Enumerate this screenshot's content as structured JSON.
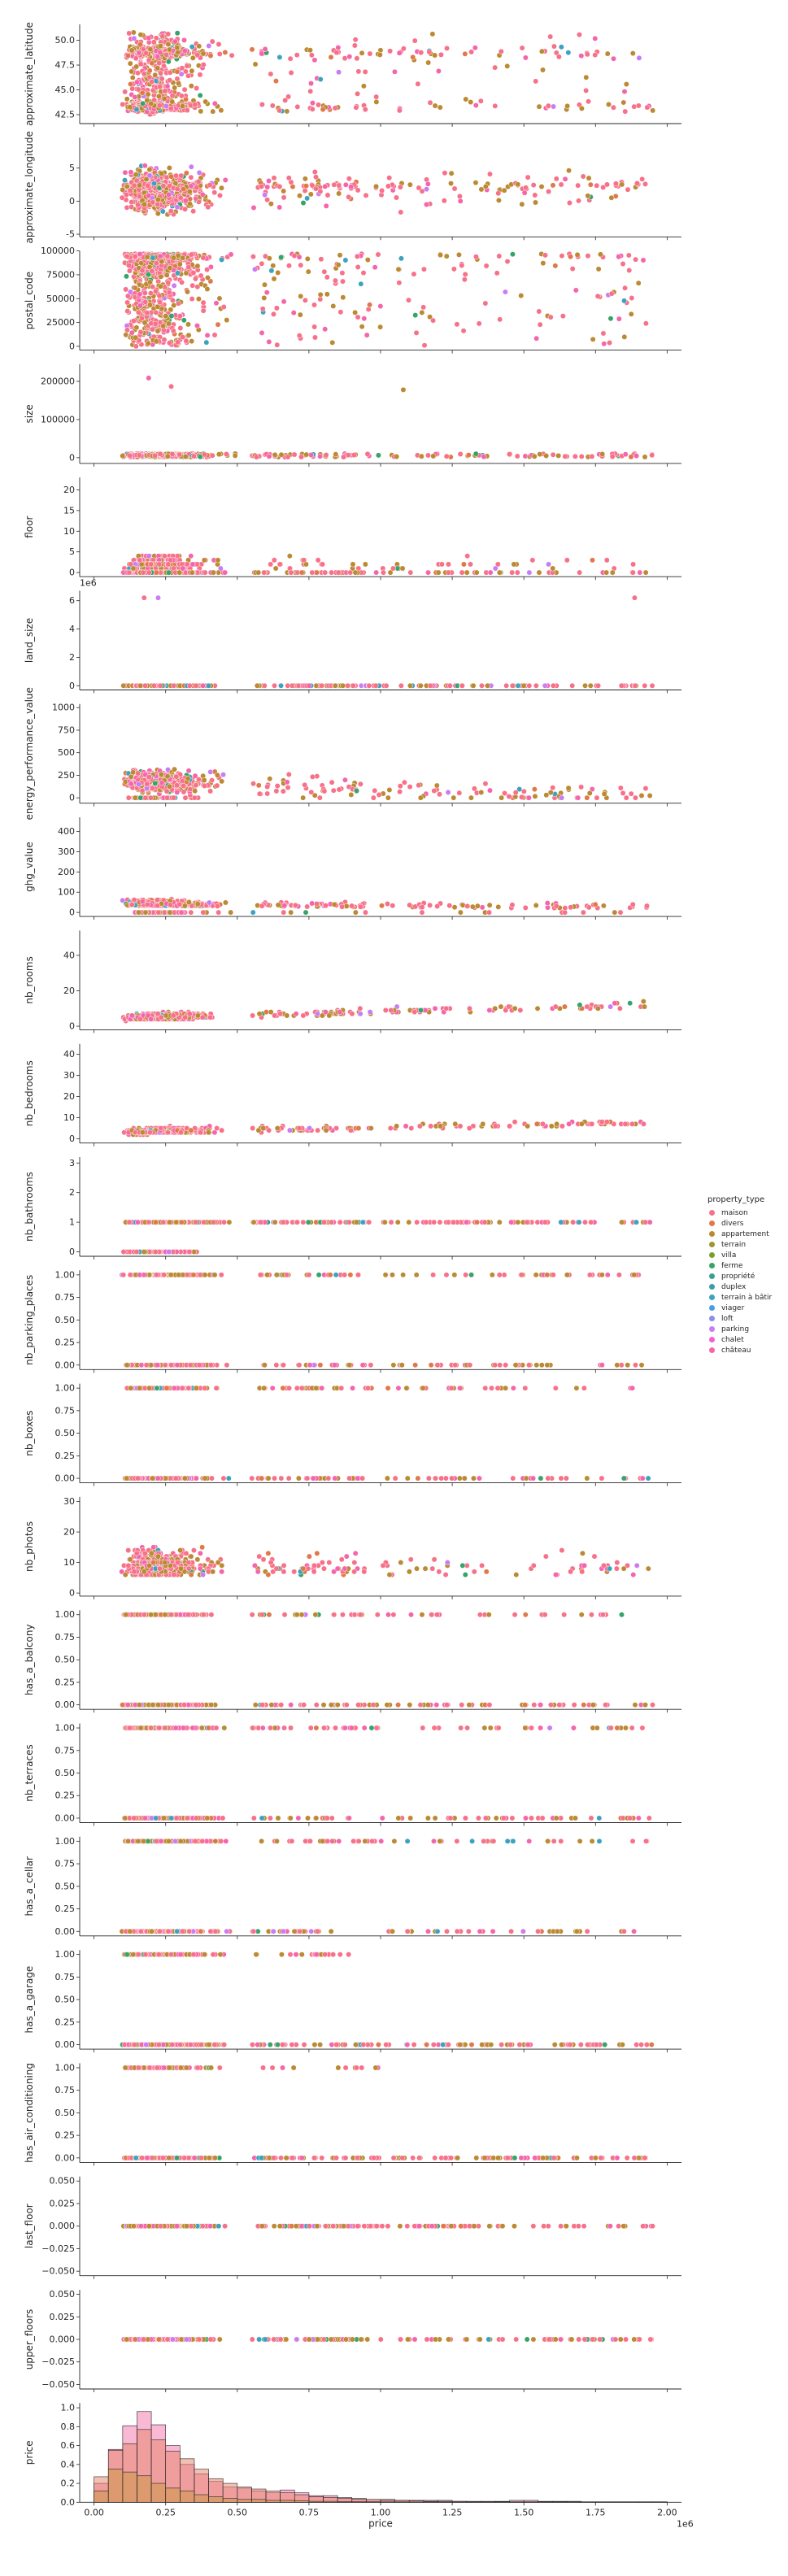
{
  "chart_data": {
    "type": "scatter",
    "xlabel": "price",
    "x_offset_text": "1e6",
    "xlim": [
      -0.05,
      2.05
    ],
    "xticks": [
      "0.00",
      "0.25",
      "0.50",
      "0.75",
      "1.00",
      "1.25",
      "1.50",
      "1.75",
      "2.00"
    ],
    "xtick_values": [
      0,
      0.25,
      0.5,
      0.75,
      1.0,
      1.25,
      1.5,
      1.75,
      2.0
    ],
    "legend": {
      "title": "property_type",
      "placement": "right",
      "entries": [
        "maison",
        "divers",
        "appartement",
        "terrain",
        "villa",
        "ferme",
        "propriété",
        "duplex",
        "terrain à bâtir",
        "viager",
        "loft",
        "parking",
        "chalet",
        "château"
      ],
      "colors": [
        "#f77189",
        "#e0794a",
        "#bb8a32",
        "#9e9632",
        "#7f9c31",
        "#35a46a",
        "#37a18d",
        "#38a0a5",
        "#3ba3c0",
        "#4a9be8",
        "#8b8ef0",
        "#c87df4",
        "#f45fd4",
        "#f565ac"
      ]
    },
    "panels": [
      {
        "ylabel": "approximate_latitude",
        "ylim": [
          41.6,
          51.6
        ],
        "yticks": [
          "42.5",
          "45.0",
          "47.5",
          "50.0"
        ],
        "ytick_values": [
          42.5,
          45.0,
          47.5,
          50.0
        ],
        "type": "scatter"
      },
      {
        "ylabel": "approximate_longitude",
        "ylim": [
          -5.4,
          9.6
        ],
        "yticks": [
          "-5",
          "0",
          "5"
        ],
        "ytick_values": [
          -5,
          0,
          5
        ],
        "type": "scatter"
      },
      {
        "ylabel": "postal_code",
        "ylim": [
          -4000,
          100000
        ],
        "yticks": [
          "0",
          "25000",
          "50000",
          "75000",
          "100000"
        ],
        "ytick_values": [
          0,
          25000,
          50000,
          75000,
          100000
        ],
        "type": "scatter"
      },
      {
        "ylabel": "size",
        "ylim": [
          -15000,
          245000
        ],
        "yticks": [
          "0",
          "100000",
          "200000"
        ],
        "ytick_values": [
          0,
          100000,
          200000
        ],
        "type": "scatter"
      },
      {
        "ylabel": "floor",
        "ylim": [
          -1,
          23
        ],
        "yticks": [
          "0",
          "5",
          "10",
          "15",
          "20"
        ],
        "ytick_values": [
          0,
          5,
          10,
          15,
          20
        ],
        "type": "scatter"
      },
      {
        "ylabel": "land_size",
        "offset_text": "1e6",
        "ylim": [
          -0.3,
          6.7
        ],
        "yticks": [
          "0",
          "2",
          "4",
          "6"
        ],
        "ytick_values": [
          0,
          2,
          4,
          6
        ],
        "type": "scatter"
      },
      {
        "ylabel": "energy_performance_value",
        "ylim": [
          -60,
          1040
        ],
        "yticks": [
          "0",
          "250",
          "500",
          "750",
          "1000"
        ],
        "ytick_values": [
          0,
          250,
          500,
          750,
          1000
        ],
        "type": "scatter"
      },
      {
        "ylabel": "ghg_value",
        "ylim": [
          -20,
          470
        ],
        "yticks": [
          "0",
          "100",
          "200",
          "300",
          "400"
        ],
        "ytick_values": [
          0,
          100,
          200,
          300,
          400
        ],
        "type": "scatter"
      },
      {
        "ylabel": "nb_rooms",
        "ylim": [
          -2,
          54
        ],
        "yticks": [
          "0",
          "20",
          "40"
        ],
        "ytick_values": [
          0,
          20,
          40
        ],
        "type": "scatter"
      },
      {
        "ylabel": "nb_bedrooms",
        "ylim": [
          -2,
          45
        ],
        "yticks": [
          "0",
          "10",
          "20",
          "30",
          "40"
        ],
        "ytick_values": [
          0,
          10,
          20,
          30,
          40
        ],
        "type": "scatter"
      },
      {
        "ylabel": "nb_bathrooms",
        "ylim": [
          -0.15,
          3.2
        ],
        "yticks": [
          "0",
          "1",
          "2",
          "3"
        ],
        "ytick_values": [
          0,
          1,
          2,
          3
        ],
        "type": "scatter"
      },
      {
        "ylabel": "nb_parking_places",
        "ylim": [
          -0.05,
          1.05
        ],
        "yticks": [
          "0.00",
          "0.25",
          "0.50",
          "0.75",
          "1.00"
        ],
        "ytick_values": [
          0,
          0.25,
          0.5,
          0.75,
          1.0
        ],
        "type": "scatter"
      },
      {
        "ylabel": "nb_boxes",
        "ylim": [
          -0.05,
          1.05
        ],
        "yticks": [
          "0.00",
          "0.25",
          "0.50",
          "0.75",
          "1.00"
        ],
        "ytick_values": [
          0,
          0.25,
          0.5,
          0.75,
          1.0
        ],
        "type": "scatter"
      },
      {
        "ylabel": "nb_photos",
        "ylim": [
          -1,
          31.5
        ],
        "yticks": [
          "0",
          "10",
          "20",
          "30"
        ],
        "ytick_values": [
          0,
          10,
          20,
          30
        ],
        "type": "scatter"
      },
      {
        "ylabel": "has_a_balcony",
        "ylim": [
          -0.05,
          1.05
        ],
        "yticks": [
          "0.00",
          "0.25",
          "0.50",
          "0.75",
          "1.00"
        ],
        "ytick_values": [
          0,
          0.25,
          0.5,
          0.75,
          1.0
        ],
        "type": "scatter"
      },
      {
        "ylabel": "nb_terraces",
        "ylim": [
          -0.05,
          1.05
        ],
        "yticks": [
          "0.00",
          "0.25",
          "0.50",
          "0.75",
          "1.00"
        ],
        "ytick_values": [
          0,
          0.25,
          0.5,
          0.75,
          1.0
        ],
        "type": "scatter"
      },
      {
        "ylabel": "has_a_cellar",
        "ylim": [
          -0.05,
          1.05
        ],
        "yticks": [
          "0.00",
          "0.25",
          "0.50",
          "0.75",
          "1.00"
        ],
        "ytick_values": [
          0,
          0.25,
          0.5,
          0.75,
          1.0
        ],
        "type": "scatter"
      },
      {
        "ylabel": "has_a_garage",
        "ylim": [
          -0.05,
          1.05
        ],
        "yticks": [
          "0.00",
          "0.25",
          "0.50",
          "0.75",
          "1.00"
        ],
        "ytick_values": [
          0,
          0.25,
          0.5,
          0.75,
          1.0
        ],
        "type": "scatter"
      },
      {
        "ylabel": "has_air_conditioning",
        "ylim": [
          -0.05,
          1.05
        ],
        "yticks": [
          "0.00",
          "0.25",
          "0.50",
          "0.75",
          "1.00"
        ],
        "ytick_values": [
          0,
          0.25,
          0.5,
          0.75,
          1.0
        ],
        "type": "scatter"
      },
      {
        "ylabel": "last_floor",
        "ylim": [
          -0.055,
          0.055
        ],
        "yticks": [
          "−0.050",
          "−0.025",
          "0.000",
          "0.025",
          "0.050"
        ],
        "ytick_values": [
          -0.05,
          -0.025,
          0,
          0.025,
          0.05
        ],
        "type": "scatter"
      },
      {
        "ylabel": "upper_floors",
        "ylim": [
          -0.055,
          0.055
        ],
        "yticks": [
          "−0.050",
          "−0.025",
          "0.000",
          "0.025",
          "0.050"
        ],
        "ytick_values": [
          -0.05,
          -0.025,
          0,
          0.025,
          0.05
        ],
        "type": "scatter"
      },
      {
        "ylabel": "price",
        "ylim": [
          0,
          1.05
        ],
        "yticks": [
          "0.0",
          "0.2",
          "0.4",
          "0.6",
          "0.8",
          "1.0"
        ],
        "ytick_values": [
          0,
          0.2,
          0.4,
          0.6,
          0.8,
          1.0
        ],
        "type": "histogram",
        "bin_edges": [
          0.0,
          0.05,
          0.1,
          0.15,
          0.2,
          0.25,
          0.3,
          0.35,
          0.4,
          0.45,
          0.5,
          0.55,
          0.6,
          0.65,
          0.7,
          0.75,
          0.8,
          0.85,
          0.9,
          0.95,
          1.0,
          1.05,
          1.1,
          1.15,
          1.2,
          1.25,
          1.3,
          1.35,
          1.4,
          1.45,
          1.5,
          1.55,
          1.6,
          1.65,
          1.7,
          1.75,
          1.8,
          1.85,
          1.9,
          1.95,
          2.0
        ],
        "series": [
          {
            "name": "maison",
            "values": [
              0.27,
              0.55,
              0.62,
              0.77,
              0.66,
              0.54,
              0.46,
              0.35,
              0.25,
              0.2,
              0.16,
              0.14,
              0.12,
              0.1,
              0.08,
              0.06,
              0.05,
              0.04,
              0.035,
              0.03,
              0.02,
              0.02,
              0.015,
              0.01,
              0.01,
              0.01,
              0.008,
              0.008,
              0.005,
              0.005,
              0.005,
              0.004,
              0.004,
              0.003,
              0.003,
              0.003,
              0.002,
              0.002,
              0.002,
              0.002
            ]
          },
          {
            "name": "appartement",
            "values": [
              0.12,
              0.35,
              0.32,
              0.28,
              0.2,
              0.15,
              0.12,
              0.08,
              0.06,
              0.04,
              0.03,
              0.03,
              0.02,
              0.02,
              0.015,
              0.01,
              0.01,
              0.008,
              0.006,
              0.005,
              0.004,
              0.004,
              0.003,
              0.003,
              0.002,
              0.002,
              0.002,
              0.002,
              0.001,
              0.001,
              0.001,
              0.001,
              0.001,
              0.001,
              0.001,
              0.001,
              0.001,
              0.001,
              0.001,
              0.001
            ]
          },
          {
            "name": "château",
            "values": [
              0.2,
              0.56,
              0.81,
              0.96,
              0.82,
              0.6,
              0.4,
              0.3,
              0.22,
              0.16,
              0.15,
              0.12,
              0.1,
              0.13,
              0.1,
              0.07,
              0.07,
              0.05,
              0.04,
              0.03,
              0.03,
              0.02,
              0.02,
              0.02,
              0.02,
              0.01,
              0.01,
              0.01,
              0.01,
              0.02,
              0.02,
              0.01,
              0.01,
              0.01,
              0.005,
              0.005,
              0.005,
              0.005,
              0.005,
              0.005
            ]
          }
        ]
      }
    ]
  }
}
